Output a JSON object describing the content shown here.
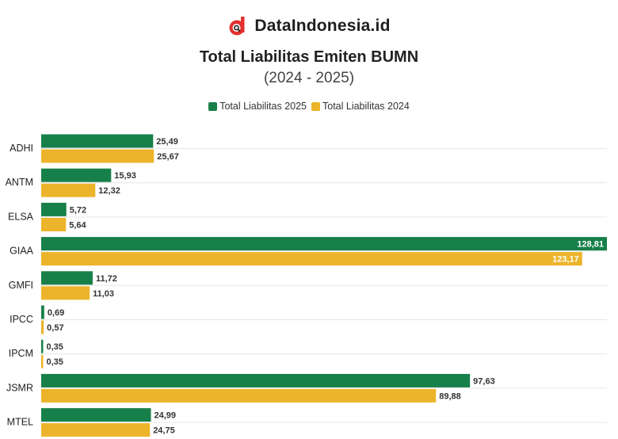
{
  "brand": {
    "name": "DataIndonesia.id",
    "logo_icon": "dataindonesia-logo-icon"
  },
  "colors": {
    "series_2025": "#17804a",
    "series_2024": "#ecb42a",
    "logo_red": "#e2312f"
  },
  "chart_data": {
    "type": "bar",
    "orientation": "horizontal",
    "title": "Total Liabilitas Emiten BUMN",
    "subtitle": "(2024 - 2025)",
    "categories": [
      "ADHI",
      "ANTM",
      "ELSA",
      "GIAA",
      "GMFI",
      "IPCC",
      "IPCM",
      "JSMR",
      "MTEL"
    ],
    "series": [
      {
        "name": "Total Liabilitas 2025",
        "values": [
          25.49,
          15.93,
          5.72,
          128.81,
          11.72,
          0.69,
          0.35,
          97.63,
          24.99
        ],
        "labels": [
          "25,49",
          "15,93",
          "5,72",
          "128,81",
          "11,72",
          "0,69",
          "0,35",
          "97,63",
          "24,99"
        ]
      },
      {
        "name": "Total Liabilitas 2024",
        "values": [
          25.67,
          12.32,
          5.64,
          123.17,
          11.03,
          0.57,
          0.35,
          89.88,
          24.75
        ],
        "labels": [
          "25,67",
          "12,32",
          "5,64",
          "123,17",
          "11,03",
          "0,57",
          "0,35",
          "89,88",
          "24,75"
        ]
      }
    ],
    "xlim": [
      0,
      128.81
    ],
    "legend": "top-center"
  }
}
